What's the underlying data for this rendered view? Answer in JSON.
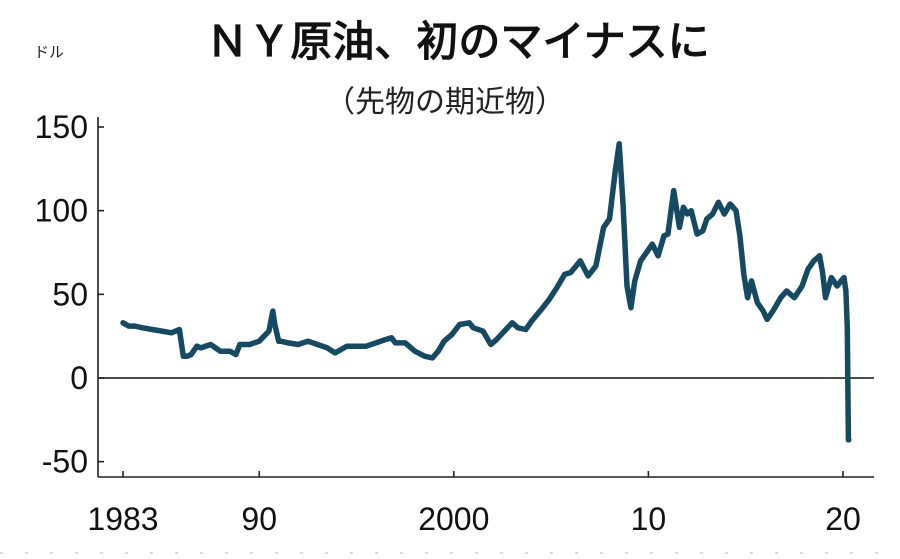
{
  "chart_data": {
    "type": "line",
    "title": "ＮＹ原油、初のマイナスに",
    "subtitle": "（先物の期近物）",
    "ylabel": "ドル",
    "xlabel": "",
    "ylim": [
      -60,
      155
    ],
    "yticks": [
      150,
      100,
      50,
      0,
      -50
    ],
    "ytick_labels": [
      "150",
      "100",
      "50",
      "0",
      "-50"
    ],
    "xlim": [
      1982.8,
      2021.5
    ],
    "xticks": [
      1983,
      1990,
      2000,
      2010,
      2020
    ],
    "xtick_labels": [
      "1983",
      "90",
      "2000",
      "10",
      "20"
    ],
    "grid": false,
    "zero_line": true,
    "line_color": "#164a63",
    "series": [
      {
        "name": "",
        "x": [
          1983.0,
          1983.3,
          1983.6,
          1984.0,
          1984.5,
          1985.0,
          1985.5,
          1985.9,
          1986.1,
          1986.3,
          1986.5,
          1986.8,
          1987.0,
          1987.5,
          1988.0,
          1988.5,
          1988.8,
          1989.0,
          1989.5,
          1990.0,
          1990.5,
          1990.7,
          1990.8,
          1991.0,
          1991.1,
          1991.5,
          1992.0,
          1992.5,
          1993.0,
          1993.5,
          1993.9,
          1994.2,
          1994.5,
          1995.0,
          1995.5,
          1996.0,
          1996.5,
          1996.8,
          1997.0,
          1997.5,
          1998.0,
          1998.5,
          1998.9,
          1999.2,
          1999.5,
          1999.9,
          2000.3,
          2000.8,
          2001.0,
          2001.5,
          2001.9,
          2002.2,
          2002.6,
          2003.0,
          2003.3,
          2003.7,
          2004.0,
          2004.5,
          2004.9,
          2005.3,
          2005.7,
          2006.0,
          2006.5,
          2006.9,
          2007.3,
          2007.7,
          2008.0,
          2008.3,
          2008.5,
          2008.7,
          2008.9,
          2009.1,
          2009.3,
          2009.6,
          2009.9,
          2010.2,
          2010.5,
          2010.8,
          2011.0,
          2011.3,
          2011.6,
          2011.8,
          2012.0,
          2012.2,
          2012.5,
          2012.8,
          2013.0,
          2013.3,
          2013.6,
          2013.9,
          2014.2,
          2014.5,
          2014.7,
          2014.9,
          2015.1,
          2015.3,
          2015.6,
          2015.9,
          2016.1,
          2016.4,
          2016.8,
          2017.1,
          2017.5,
          2017.9,
          2018.2,
          2018.5,
          2018.8,
          2018.95,
          2019.1,
          2019.4,
          2019.7,
          2019.9,
          2020.05,
          2020.15,
          2020.22,
          2020.28,
          2020.3
        ],
        "y": [
          33,
          31,
          31,
          30,
          29,
          28,
          27,
          29,
          13,
          13,
          14,
          19,
          18,
          20,
          16,
          16,
          14,
          20,
          20,
          22,
          28,
          40,
          32,
          22,
          22,
          21,
          20,
          22,
          20,
          18,
          15,
          17,
          19,
          19,
          19,
          21,
          23,
          24,
          21,
          21,
          16,
          13,
          12,
          16,
          22,
          26,
          32,
          33,
          30,
          28,
          20,
          23,
          28,
          33,
          30,
          29,
          34,
          41,
          47,
          54,
          62,
          63,
          70,
          61,
          67,
          90,
          95,
          124,
          140,
          103,
          55,
          42,
          58,
          70,
          75,
          80,
          73,
          85,
          86,
          112,
          90,
          102,
          98,
          100,
          86,
          88,
          95,
          98,
          105,
          98,
          104,
          100,
          85,
          62,
          48,
          58,
          45,
          40,
          35,
          40,
          48,
          52,
          48,
          55,
          65,
          70,
          73,
          63,
          48,
          60,
          55,
          58,
          60,
          52,
          30,
          -37,
          -37
        ]
      }
    ]
  }
}
